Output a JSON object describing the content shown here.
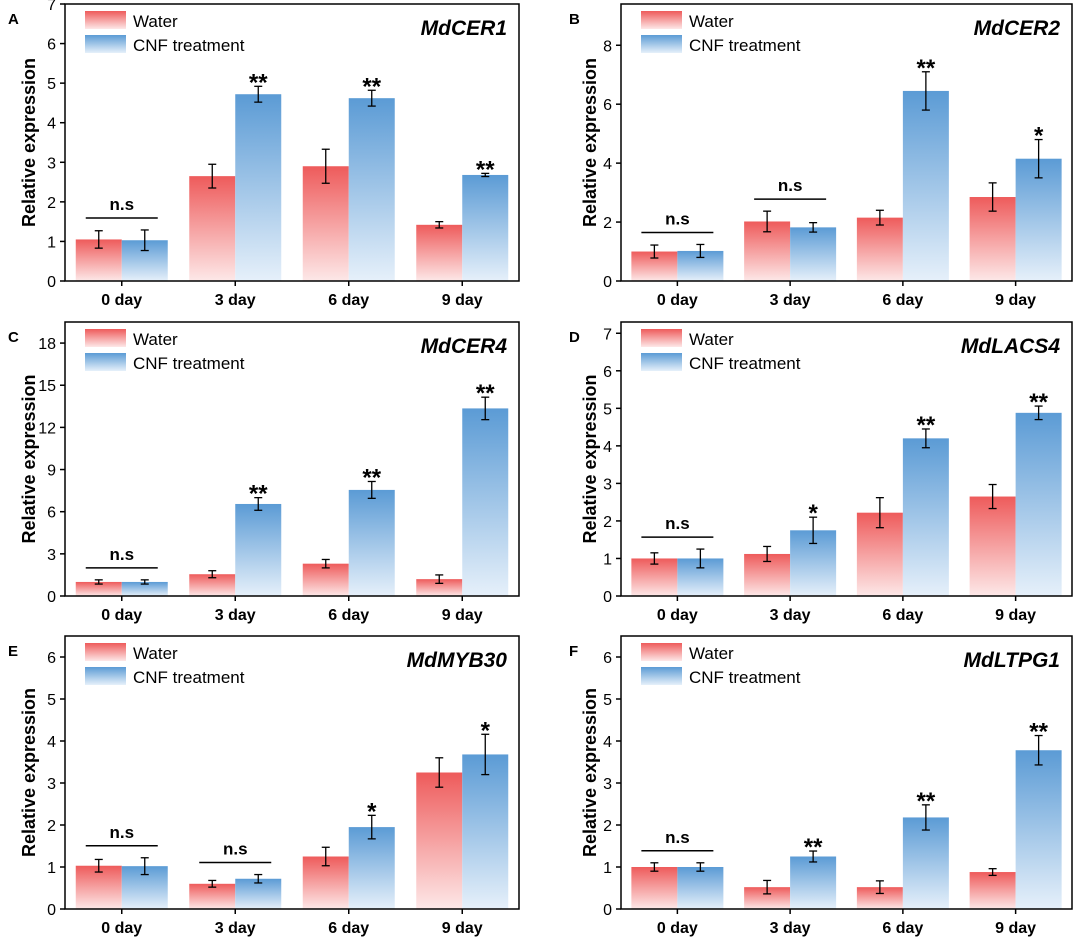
{
  "legend": [
    "Water",
    "CNF treatment"
  ],
  "colors": {
    "water_top": "#ee5b5b",
    "water_bottom": "#fde8e8",
    "cnf_top": "#5b9bd5",
    "cnf_bottom": "#e6f0fa",
    "axis": "#000000"
  },
  "chart_data": [
    {
      "panel": "A",
      "type": "bar",
      "title": "MdCER1",
      "categories": [
        "0 day",
        "3 day",
        "6 day",
        "9 day"
      ],
      "xlabel": "",
      "ylabel": "Relative expression",
      "ylim": [
        0,
        7
      ],
      "yticks": [
        0,
        1,
        2,
        3,
        4,
        5,
        6,
        7
      ],
      "series": [
        {
          "name": "Water",
          "values": [
            1.05,
            2.65,
            2.9,
            1.42
          ],
          "errors": [
            0.22,
            0.3,
            0.43,
            0.08
          ]
        },
        {
          "name": "CNF treatment",
          "values": [
            1.03,
            4.72,
            4.62,
            2.68
          ],
          "errors": [
            0.26,
            0.2,
            0.2,
            0.04
          ]
        }
      ],
      "significance": [
        "n.s",
        "**",
        "**",
        "**"
      ]
    },
    {
      "panel": "B",
      "type": "bar",
      "title": "MdCER2",
      "categories": [
        "0 day",
        "3 day",
        "6 day",
        "9 day"
      ],
      "xlabel": "",
      "ylabel": "Relative expression",
      "ylim": [
        0,
        9.4
      ],
      "yticks": [
        0,
        2,
        4,
        6,
        8
      ],
      "series": [
        {
          "name": "Water",
          "values": [
            1.0,
            2.02,
            2.15,
            2.85
          ],
          "errors": [
            0.22,
            0.35,
            0.25,
            0.48
          ]
        },
        {
          "name": "CNF treatment",
          "values": [
            1.02,
            1.82,
            6.45,
            4.15
          ],
          "errors": [
            0.22,
            0.16,
            0.65,
            0.65
          ]
        }
      ],
      "significance": [
        "n.s",
        "n.s",
        "**",
        "*"
      ]
    },
    {
      "panel": "C",
      "type": "bar",
      "title": "MdCER4",
      "categories": [
        "0 day",
        "3 day",
        "6 day",
        "9 day"
      ],
      "xlabel": "",
      "ylabel": "Relative expression",
      "ylim": [
        0,
        19.5
      ],
      "yticks": [
        0,
        3,
        6,
        9,
        12,
        15,
        18
      ],
      "series": [
        {
          "name": "Water",
          "values": [
            1.0,
            1.55,
            2.3,
            1.2
          ],
          "errors": [
            0.15,
            0.25,
            0.3,
            0.3
          ]
        },
        {
          "name": "CNF treatment",
          "values": [
            1.0,
            6.55,
            7.55,
            13.35
          ],
          "errors": [
            0.15,
            0.45,
            0.6,
            0.8
          ]
        }
      ],
      "significance": [
        "n.s",
        "**",
        "**",
        "**"
      ]
    },
    {
      "panel": "D",
      "type": "bar",
      "title": "MdLACS4",
      "categories": [
        "0 day",
        "3 day",
        "6 day",
        "9 day"
      ],
      "xlabel": "",
      "ylabel": "Relative expression",
      "ylim": [
        0,
        7.3
      ],
      "yticks": [
        0,
        1,
        2,
        3,
        4,
        5,
        6,
        7
      ],
      "series": [
        {
          "name": "Water",
          "values": [
            1.0,
            1.12,
            2.22,
            2.65
          ],
          "errors": [
            0.15,
            0.2,
            0.4,
            0.32
          ]
        },
        {
          "name": "CNF treatment",
          "values": [
            1.0,
            1.75,
            4.2,
            4.88
          ],
          "errors": [
            0.25,
            0.35,
            0.25,
            0.18
          ]
        }
      ],
      "significance": [
        "n.s",
        "*",
        "**",
        "**"
      ]
    },
    {
      "panel": "E",
      "type": "bar",
      "title": "MdMYB30",
      "categories": [
        "0 day",
        "3 day",
        "6 day",
        "9 day"
      ],
      "xlabel": "",
      "ylabel": "Relative expression",
      "ylim": [
        0,
        6.5
      ],
      "yticks": [
        0,
        1,
        2,
        3,
        4,
        5,
        6
      ],
      "series": [
        {
          "name": "Water",
          "values": [
            1.03,
            0.6,
            1.25,
            3.25
          ],
          "errors": [
            0.15,
            0.08,
            0.22,
            0.35
          ]
        },
        {
          "name": "CNF treatment",
          "values": [
            1.02,
            0.72,
            1.95,
            3.68
          ],
          "errors": [
            0.2,
            0.1,
            0.28,
            0.48
          ]
        }
      ],
      "significance": [
        "n.s",
        "n.s",
        "*",
        "*"
      ]
    },
    {
      "panel": "F",
      "type": "bar",
      "title": "MdLTPG1",
      "categories": [
        "0 day",
        "3 day",
        "6 day",
        "9 day"
      ],
      "xlabel": "",
      "ylabel": "Relative expression",
      "ylim": [
        0,
        6.5
      ],
      "yticks": [
        0,
        1,
        2,
        3,
        4,
        5,
        6
      ],
      "series": [
        {
          "name": "Water",
          "values": [
            1.0,
            0.52,
            0.52,
            0.88
          ],
          "errors": [
            0.1,
            0.16,
            0.15,
            0.08
          ]
        },
        {
          "name": "CNF treatment",
          "values": [
            1.0,
            1.25,
            2.18,
            3.78
          ],
          "errors": [
            0.1,
            0.13,
            0.3,
            0.35
          ]
        }
      ],
      "significance": [
        "n.s",
        "**",
        "**",
        "**"
      ]
    }
  ]
}
